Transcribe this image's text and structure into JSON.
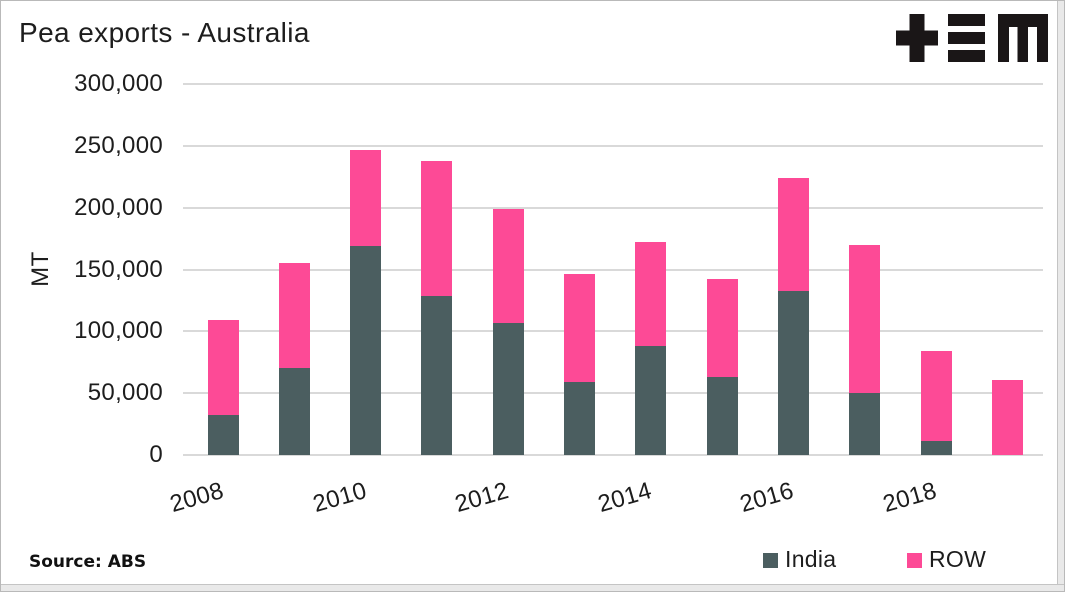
{
  "header": {
    "title": "Pea exports - Australia"
  },
  "footer": {
    "source": "Source: ABS"
  },
  "legend": {
    "items": [
      {
        "label": "India",
        "color": "#4b5e60"
      },
      {
        "label": "ROW",
        "color": "#fd4a96"
      }
    ]
  },
  "logo": {
    "glyphs": [
      "plus-icon",
      "triple-bar-icon",
      "m-icon"
    ],
    "color": "#1a1617"
  },
  "colors": {
    "india": "#4b5e60",
    "row": "#fd4a96",
    "gridline": "#d9d9d9",
    "text": "#1d1d1d",
    "background": "#ffffff"
  },
  "chart_data": {
    "type": "bar",
    "stacked": true,
    "title": "Pea exports - Australia",
    "ylabel": "MT",
    "ylim": [
      0,
      300000
    ],
    "ytick_interval": 50000,
    "ytick_labels": [
      "0",
      "50,000",
      "100,000",
      "150,000",
      "200,000",
      "250,000",
      "300,000"
    ],
    "categories": [
      "2008",
      "2009",
      "2010",
      "2011",
      "2012",
      "2013",
      "2014",
      "2015",
      "2016",
      "2017",
      "2018",
      "2019"
    ],
    "xticks_shown": [
      "2008",
      "2010",
      "2012",
      "2014",
      "2016",
      "2018"
    ],
    "grid": "horizontal",
    "legend_position": "bottom-right",
    "source": "ABS",
    "series": [
      {
        "name": "India",
        "color": "#4b5e60",
        "values": [
          32000,
          70000,
          169000,
          129000,
          107000,
          59000,
          88000,
          63000,
          133000,
          50000,
          11000,
          0
        ]
      },
      {
        "name": "ROW",
        "color": "#fd4a96",
        "values": [
          77000,
          85000,
          78000,
          109000,
          92000,
          87000,
          84000,
          79000,
          91000,
          120000,
          73000,
          61000
        ]
      }
    ],
    "totals": [
      109000,
      155000,
      247000,
      238000,
      199000,
      146000,
      172000,
      142000,
      224000,
      170000,
      84000,
      61000
    ]
  }
}
